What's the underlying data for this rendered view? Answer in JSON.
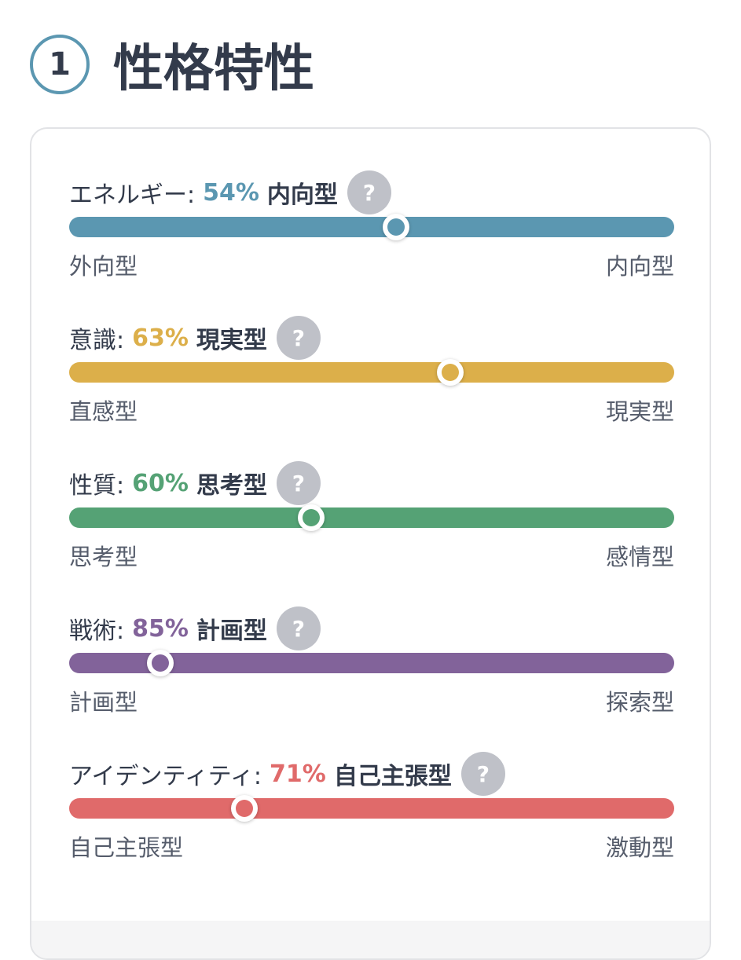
{
  "header": {
    "number": "1",
    "title": "性格特性"
  },
  "help_icon": "?",
  "traits": [
    {
      "label": "エネルギー:",
      "percent": {
        "value": 54,
        "label": "54%"
      },
      "type": "内向型",
      "color": "#5b97b1",
      "left": "外向型",
      "right": "内向型"
    },
    {
      "label": "意識:",
      "percent": {
        "value": 63,
        "label": "63%"
      },
      "type": "現実型",
      "color": "#dcaf4a",
      "left": "直感型",
      "right": "現実型"
    },
    {
      "label": "性質:",
      "percent": {
        "value": 60,
        "label": "60%"
      },
      "type": "思考型",
      "color": "#55a275",
      "left": "思考型",
      "right": "感情型"
    },
    {
      "label": "戦術:",
      "percent": {
        "value": 85,
        "label": "85%"
      },
      "type": "計画型",
      "color": "#82639a",
      "left": "計画型",
      "right": "探索型"
    },
    {
      "label": "アイデンティティ:",
      "percent": {
        "value": 71,
        "label": "71%"
      },
      "type": "自己主張型",
      "color": "#e06a6a",
      "left": "自己主張型",
      "right": "激動型"
    }
  ]
}
